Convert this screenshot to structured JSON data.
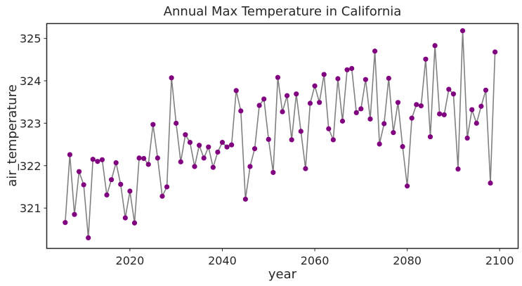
{
  "chart_data": {
    "type": "line",
    "title": "Annual Max Temperature in California",
    "xlabel": "year",
    "ylabel": "air_temperature",
    "xlim": [
      2002,
      2104
    ],
    "ylim": [
      320.05,
      325.35
    ],
    "xticks": [
      2020,
      2040,
      2060,
      2080,
      2100
    ],
    "yticks": [
      321,
      322,
      323,
      324,
      325
    ],
    "grid": false,
    "line_color": "#808080",
    "marker_color": "#800080",
    "series": [
      {
        "x": [
          2006,
          2007,
          2008,
          2009,
          2010,
          2011,
          2012,
          2013,
          2014,
          2015,
          2016,
          2017,
          2018,
          2019,
          2020,
          2021,
          2022,
          2023,
          2024,
          2025,
          2026,
          2027,
          2028,
          2029,
          2030,
          2031,
          2032,
          2033,
          2034,
          2035,
          2036,
          2037,
          2038,
          2039,
          2040,
          2041,
          2042,
          2043,
          2044,
          2045,
          2046,
          2047,
          2048,
          2049,
          2050,
          2051,
          2052,
          2053,
          2054,
          2055,
          2056,
          2057,
          2058,
          2059,
          2060,
          2061,
          2062,
          2063,
          2064,
          2065,
          2066,
          2067,
          2068,
          2069,
          2070,
          2071,
          2072,
          2073,
          2074,
          2075,
          2076,
          2077,
          2078,
          2079,
          2080,
          2081,
          2082,
          2083,
          2084,
          2085,
          2086,
          2087,
          2088,
          2089,
          2090,
          2091,
          2092,
          2093,
          2094,
          2095,
          2096,
          2097,
          2098,
          2099
        ],
        "values": [
          320.66,
          322.26,
          320.85,
          321.86,
          321.55,
          320.3,
          322.15,
          322.1,
          322.14,
          321.31,
          321.67,
          322.07,
          321.56,
          320.77,
          321.4,
          320.65,
          322.18,
          322.17,
          322.03,
          322.97,
          322.18,
          321.28,
          321.5,
          324.07,
          323.0,
          322.09,
          322.73,
          322.55,
          321.98,
          322.48,
          322.18,
          322.44,
          321.96,
          322.32,
          322.55,
          322.44,
          322.49,
          323.77,
          323.29,
          321.21,
          321.98,
          322.4,
          323.42,
          323.57,
          322.62,
          321.84,
          324.08,
          323.27,
          323.65,
          322.61,
          323.69,
          322.81,
          321.93,
          323.47,
          323.88,
          323.49,
          324.15,
          322.87,
          322.61,
          324.05,
          323.05,
          324.26,
          324.29,
          323.25,
          323.34,
          324.03,
          323.1,
          324.7,
          322.51,
          322.99,
          324.06,
          322.78,
          323.49,
          322.45,
          321.52,
          323.12,
          323.44,
          323.41,
          324.51,
          322.68,
          324.83,
          323.22,
          323.2,
          323.8,
          323.69,
          321.92,
          325.18,
          322.65,
          323.32,
          323.0,
          323.4,
          323.78,
          321.59,
          324.68
        ]
      }
    ]
  }
}
